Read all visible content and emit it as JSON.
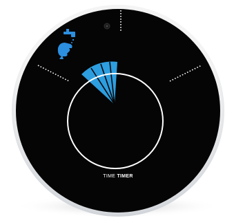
{
  "brand": {
    "light": "TIME",
    "bold": "TIMER"
  }
}
